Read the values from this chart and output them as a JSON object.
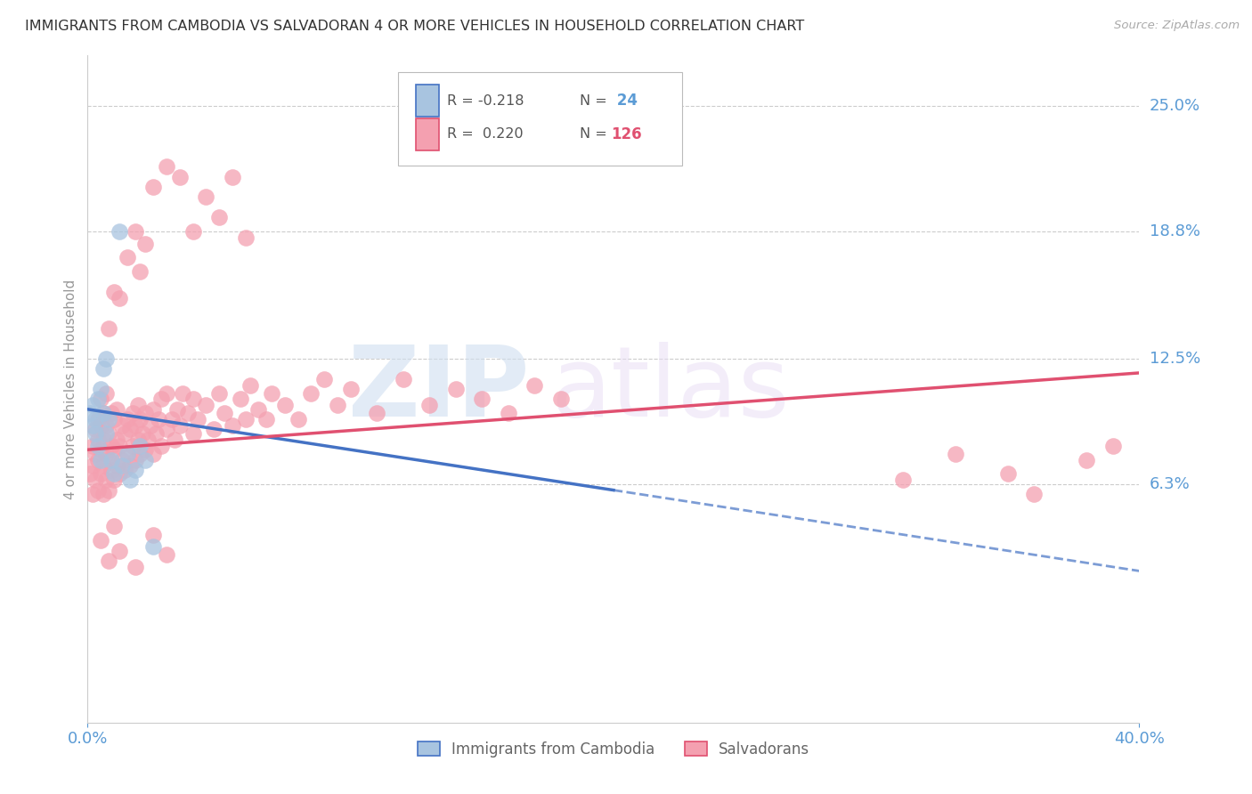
{
  "title": "IMMIGRANTS FROM CAMBODIA VS SALVADORAN 4 OR MORE VEHICLES IN HOUSEHOLD CORRELATION CHART",
  "source": "Source: ZipAtlas.com",
  "ylabel": "4 or more Vehicles in Household",
  "ytick_labels": [
    "25.0%",
    "18.8%",
    "12.5%",
    "6.3%"
  ],
  "ytick_values": [
    0.25,
    0.188,
    0.125,
    0.063
  ],
  "xmin": 0.0,
  "xmax": 0.4,
  "ymin": -0.055,
  "ymax": 0.275,
  "color_cambodia": "#a8c4e0",
  "color_salvadoran": "#f4a0b0",
  "color_line_cambodia": "#4472c4",
  "color_line_salvadoran": "#e05070",
  "color_axis_labels": "#5b9bd5",
  "watermark_zip": "ZIP",
  "watermark_atlas": "atlas",
  "background_color": "#ffffff",
  "grid_color": "#cccccc",
  "scatter_cambodia": [
    [
      0.001,
      0.098
    ],
    [
      0.002,
      0.092
    ],
    [
      0.002,
      0.102
    ],
    [
      0.003,
      0.095
    ],
    [
      0.003,
      0.088
    ],
    [
      0.004,
      0.105
    ],
    [
      0.004,
      0.082
    ],
    [
      0.005,
      0.11
    ],
    [
      0.005,
      0.075
    ],
    [
      0.006,
      0.098
    ],
    [
      0.006,
      0.12
    ],
    [
      0.007,
      0.125
    ],
    [
      0.007,
      0.088
    ],
    [
      0.008,
      0.095
    ],
    [
      0.009,
      0.075
    ],
    [
      0.01,
      0.068
    ],
    [
      0.012,
      0.188
    ],
    [
      0.013,
      0.072
    ],
    [
      0.015,
      0.078
    ],
    [
      0.016,
      0.065
    ],
    [
      0.018,
      0.07
    ],
    [
      0.02,
      0.082
    ],
    [
      0.022,
      0.075
    ],
    [
      0.025,
      0.032
    ]
  ],
  "scatter_salvadoran": [
    [
      0.001,
      0.068
    ],
    [
      0.002,
      0.058
    ],
    [
      0.002,
      0.072
    ],
    [
      0.002,
      0.082
    ],
    [
      0.003,
      0.065
    ],
    [
      0.003,
      0.078
    ],
    [
      0.003,
      0.09
    ],
    [
      0.004,
      0.06
    ],
    [
      0.004,
      0.075
    ],
    [
      0.004,
      0.085
    ],
    [
      0.004,
      0.095
    ],
    [
      0.005,
      0.068
    ],
    [
      0.005,
      0.08
    ],
    [
      0.005,
      0.092
    ],
    [
      0.005,
      0.105
    ],
    [
      0.006,
      0.058
    ],
    [
      0.006,
      0.072
    ],
    [
      0.006,
      0.085
    ],
    [
      0.006,
      0.098
    ],
    [
      0.007,
      0.065
    ],
    [
      0.007,
      0.078
    ],
    [
      0.007,
      0.092
    ],
    [
      0.007,
      0.108
    ],
    [
      0.008,
      0.06
    ],
    [
      0.008,
      0.075
    ],
    [
      0.008,
      0.088
    ],
    [
      0.009,
      0.07
    ],
    [
      0.009,
      0.082
    ],
    [
      0.009,
      0.098
    ],
    [
      0.01,
      0.065
    ],
    [
      0.01,
      0.08
    ],
    [
      0.01,
      0.095
    ],
    [
      0.011,
      0.072
    ],
    [
      0.011,
      0.085
    ],
    [
      0.011,
      0.1
    ],
    [
      0.012,
      0.068
    ],
    [
      0.012,
      0.082
    ],
    [
      0.013,
      0.075
    ],
    [
      0.013,
      0.092
    ],
    [
      0.014,
      0.07
    ],
    [
      0.014,
      0.088
    ],
    [
      0.015,
      0.078
    ],
    [
      0.015,
      0.095
    ],
    [
      0.016,
      0.072
    ],
    [
      0.016,
      0.09
    ],
    [
      0.017,
      0.082
    ],
    [
      0.017,
      0.098
    ],
    [
      0.018,
      0.075
    ],
    [
      0.018,
      0.092
    ],
    [
      0.019,
      0.085
    ],
    [
      0.019,
      0.102
    ],
    [
      0.02,
      0.078
    ],
    [
      0.02,
      0.095
    ],
    [
      0.021,
      0.088
    ],
    [
      0.022,
      0.08
    ],
    [
      0.022,
      0.098
    ],
    [
      0.023,
      0.085
    ],
    [
      0.024,
      0.092
    ],
    [
      0.025,
      0.078
    ],
    [
      0.025,
      0.1
    ],
    [
      0.026,
      0.088
    ],
    [
      0.027,
      0.095
    ],
    [
      0.028,
      0.082
    ],
    [
      0.028,
      0.105
    ],
    [
      0.03,
      0.09
    ],
    [
      0.03,
      0.108
    ],
    [
      0.032,
      0.095
    ],
    [
      0.033,
      0.085
    ],
    [
      0.034,
      0.1
    ],
    [
      0.035,
      0.092
    ],
    [
      0.036,
      0.108
    ],
    [
      0.038,
      0.098
    ],
    [
      0.04,
      0.088
    ],
    [
      0.04,
      0.105
    ],
    [
      0.042,
      0.095
    ],
    [
      0.045,
      0.102
    ],
    [
      0.048,
      0.09
    ],
    [
      0.05,
      0.108
    ],
    [
      0.052,
      0.098
    ],
    [
      0.055,
      0.092
    ],
    [
      0.058,
      0.105
    ],
    [
      0.06,
      0.095
    ],
    [
      0.062,
      0.112
    ],
    [
      0.065,
      0.1
    ],
    [
      0.068,
      0.095
    ],
    [
      0.07,
      0.108
    ],
    [
      0.075,
      0.102
    ],
    [
      0.08,
      0.095
    ],
    [
      0.085,
      0.108
    ],
    [
      0.09,
      0.115
    ],
    [
      0.095,
      0.102
    ],
    [
      0.1,
      0.11
    ],
    [
      0.11,
      0.098
    ],
    [
      0.12,
      0.115
    ],
    [
      0.13,
      0.102
    ],
    [
      0.14,
      0.11
    ],
    [
      0.15,
      0.105
    ],
    [
      0.16,
      0.098
    ],
    [
      0.17,
      0.112
    ],
    [
      0.18,
      0.105
    ],
    [
      0.012,
      0.155
    ],
    [
      0.015,
      0.175
    ],
    [
      0.018,
      0.188
    ],
    [
      0.025,
      0.21
    ],
    [
      0.03,
      0.22
    ],
    [
      0.035,
      0.215
    ],
    [
      0.045,
      0.205
    ],
    [
      0.055,
      0.215
    ],
    [
      0.04,
      0.188
    ],
    [
      0.05,
      0.195
    ],
    [
      0.06,
      0.185
    ],
    [
      0.02,
      0.168
    ],
    [
      0.008,
      0.14
    ],
    [
      0.01,
      0.158
    ],
    [
      0.022,
      0.182
    ],
    [
      0.005,
      0.035
    ],
    [
      0.008,
      0.025
    ],
    [
      0.012,
      0.03
    ],
    [
      0.018,
      0.022
    ],
    [
      0.025,
      0.038
    ],
    [
      0.03,
      0.028
    ],
    [
      0.01,
      0.042
    ],
    [
      0.35,
      0.068
    ],
    [
      0.36,
      0.058
    ],
    [
      0.38,
      0.075
    ],
    [
      0.39,
      0.082
    ],
    [
      0.33,
      0.078
    ],
    [
      0.31,
      0.065
    ]
  ]
}
